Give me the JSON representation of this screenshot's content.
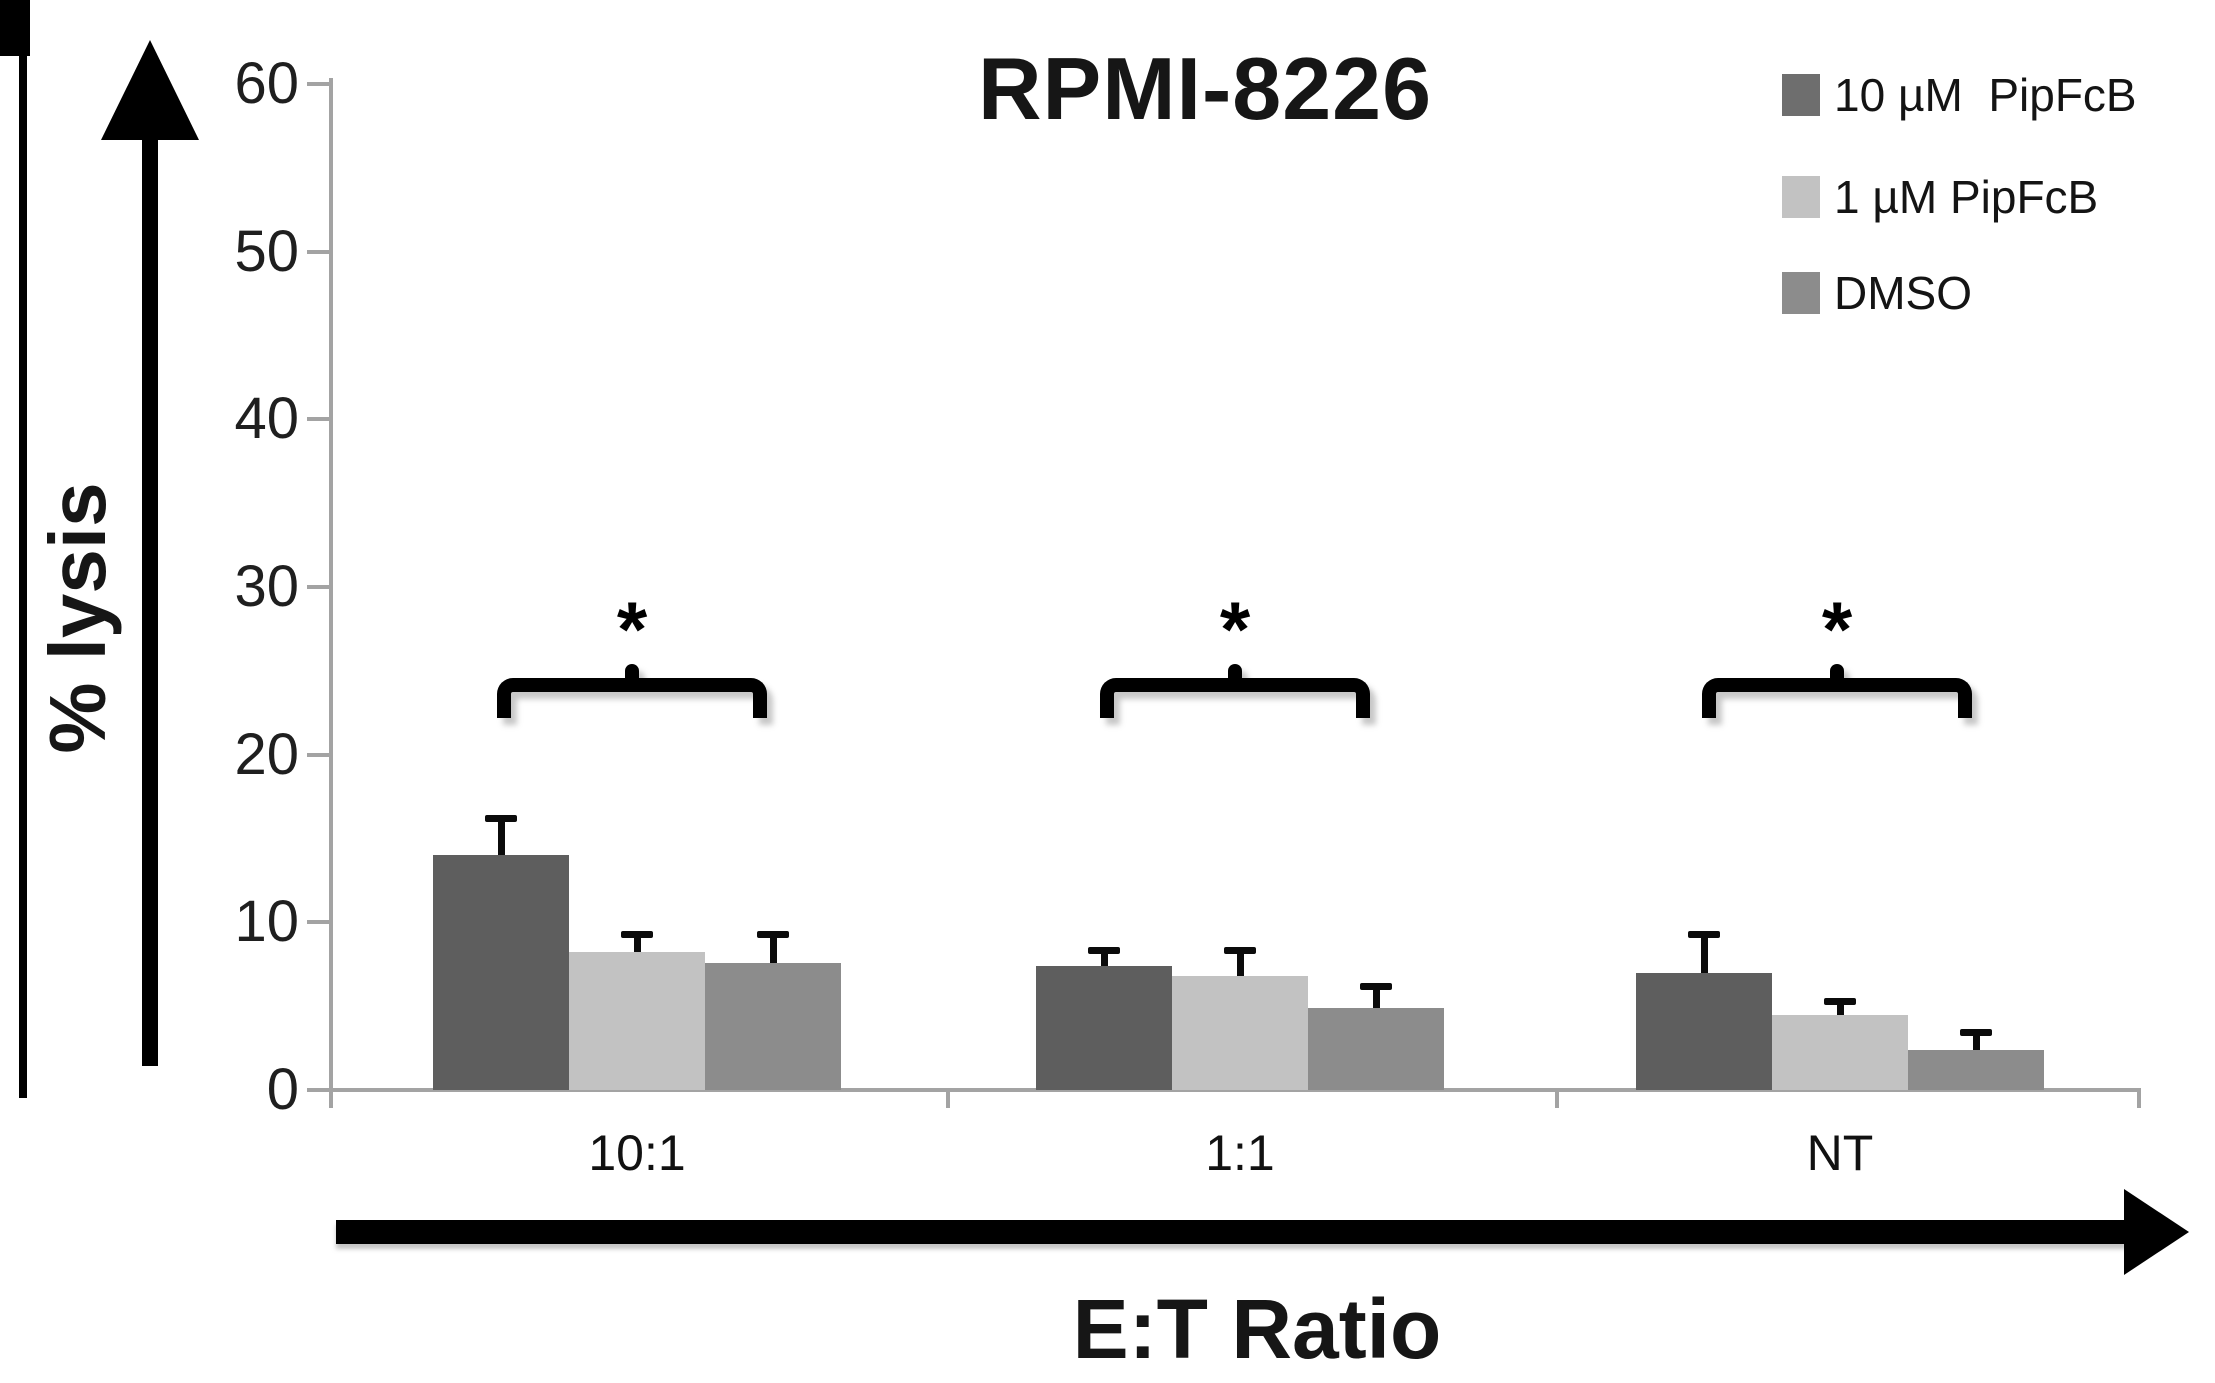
{
  "title": "RPMI-8226",
  "y_axis": {
    "label": "% lysis",
    "ticks": [
      60,
      50,
      40,
      30,
      20,
      10,
      0
    ],
    "max": 60
  },
  "x_axis": {
    "label": "E:T Ratio",
    "categories": [
      "10:1",
      "1:1",
      "NT"
    ]
  },
  "legend": [
    {
      "label": "10 µM  PipFcB",
      "color": "#6e6e6e"
    },
    {
      "label": "1 µM PipFcB",
      "color": "#c2c2c2"
    },
    {
      "label": "DMSO",
      "color": "#8c8c8c"
    }
  ],
  "significance_symbol": "*",
  "colors": {
    "axis_gray": "#a3a3a3",
    "bar_dark": "#5e5e5e",
    "bar_light": "#c2c2c2",
    "bar_medium": "#8c8c8c",
    "ink": "#000000"
  },
  "chart_data": {
    "type": "bar",
    "title": "RPMI-8226",
    "xlabel": "E:T Ratio",
    "ylabel": "% lysis",
    "ylim": [
      0,
      60
    ],
    "ytick_step": 10,
    "grid": false,
    "legend_position": "top-right",
    "categories": [
      "10:1",
      "1:1",
      "NT"
    ],
    "series": [
      {
        "name": "10 µM  PipFcB",
        "color": "#5e5e5e",
        "values": [
          14.0,
          7.4,
          7.0
        ],
        "errors_plus": [
          2.2,
          0.9,
          2.3
        ]
      },
      {
        "name": "1 µM PipFcB",
        "color": "#c2c2c2",
        "values": [
          8.2,
          6.8,
          4.5
        ],
        "errors_plus": [
          1.1,
          1.5,
          0.8
        ]
      },
      {
        "name": "DMSO",
        "color": "#8c8c8c",
        "values": [
          7.6,
          4.9,
          2.4
        ],
        "errors_plus": [
          1.7,
          1.3,
          1.0
        ]
      }
    ],
    "annotations": [
      {
        "type": "significance-bracket",
        "category": "10:1",
        "text": "*"
      },
      {
        "type": "significance-bracket",
        "category": "1:1",
        "text": "*"
      },
      {
        "type": "significance-bracket",
        "category": "NT",
        "text": "*"
      }
    ]
  }
}
